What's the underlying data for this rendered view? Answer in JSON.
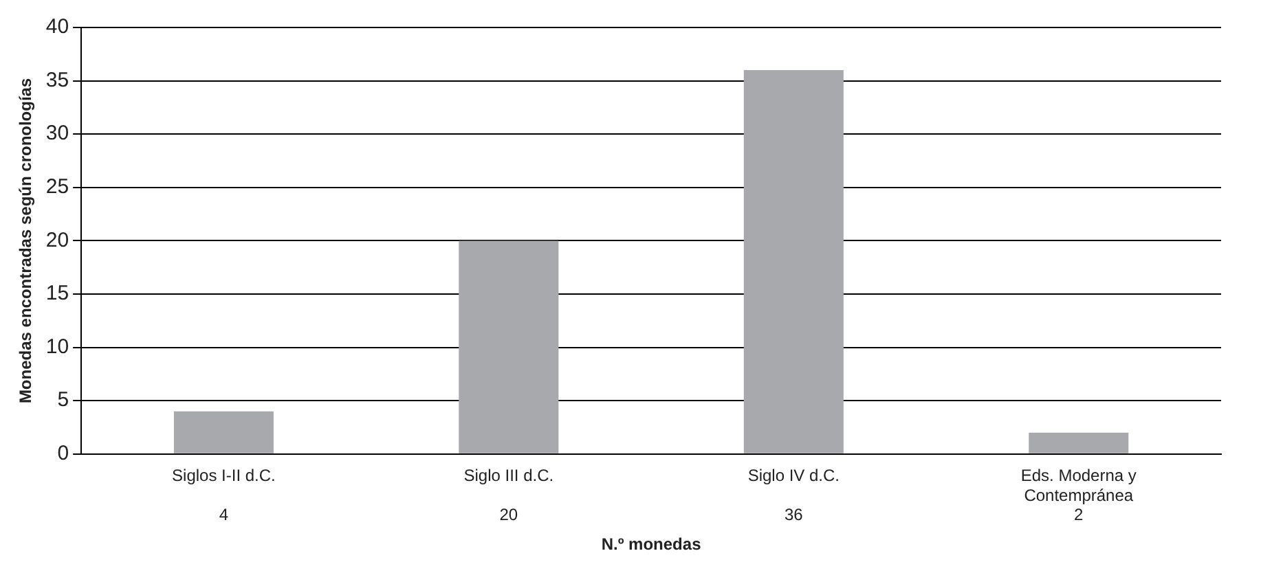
{
  "chart_data": {
    "type": "bar",
    "xlabel": "N.º monedas",
    "ylabel": "Monedas encontradas según cronologías",
    "categories": [
      "Siglos I-II d.C.",
      "Siglo III d.C.",
      "Siglo IV d.C.",
      "Eds. Moderna y Contempránea"
    ],
    "values": [
      4,
      20,
      36,
      2
    ],
    "color": "#a7a9ac",
    "data_labels": true,
    "ylim": [
      0,
      40
    ],
    "yticks": [
      0,
      5,
      10,
      15,
      20,
      25,
      30,
      35,
      40
    ],
    "grid": "y",
    "legend": false
  }
}
